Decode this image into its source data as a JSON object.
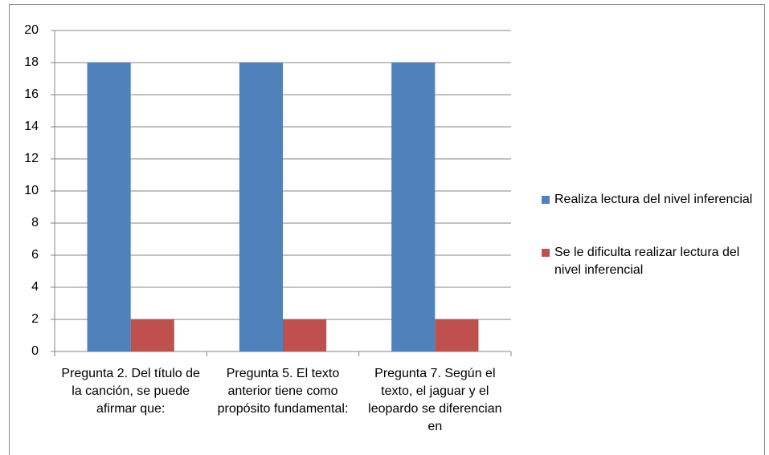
{
  "chart_data": {
    "type": "bar",
    "categories": [
      "Pregunta 2. Del título de la canción, se puede afirmar que:",
      "Pregunta 5. El texto anterior tiene como propósito fundamental:",
      "Pregunta 7. Según el texto, el jaguar y el leopardo se diferencian en"
    ],
    "series": [
      {
        "name": "Realiza lectura del nivel inferencial",
        "color": "#4f81bd",
        "values": [
          18,
          18,
          18
        ]
      },
      {
        "name": "Se le dificulta realizar lectura del nivel inferencial",
        "color": "#c0504d",
        "values": [
          2,
          2,
          2
        ]
      }
    ],
    "ylim": [
      0,
      20
    ],
    "yticks": [
      0,
      2,
      4,
      6,
      8,
      10,
      12,
      14,
      16,
      18,
      20
    ],
    "grid": true,
    "legend": "right"
  }
}
